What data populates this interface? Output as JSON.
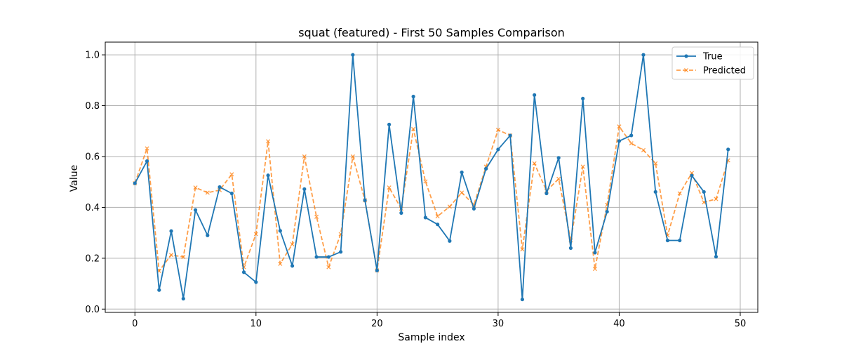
{
  "chart_data": {
    "type": "line",
    "title": "squat (featured) - First 50 Samples Comparison",
    "xlabel": "Sample index",
    "ylabel": "Value",
    "xlim": [
      -2.45,
      51.45
    ],
    "ylim": [
      -0.013,
      1.05
    ],
    "xticks": [
      0,
      10,
      20,
      30,
      40,
      50
    ],
    "yticks": [
      0.0,
      0.2,
      0.4,
      0.6,
      0.8,
      1.0
    ],
    "xtick_labels": [
      "0",
      "10",
      "20",
      "30",
      "40",
      "50"
    ],
    "ytick_labels": [
      "0.0",
      "0.2",
      "0.4",
      "0.6",
      "0.8",
      "1.0"
    ],
    "grid": true,
    "legend_position": "top-right",
    "x": [
      0,
      1,
      2,
      3,
      4,
      5,
      6,
      7,
      8,
      9,
      10,
      11,
      12,
      13,
      14,
      15,
      16,
      17,
      18,
      19,
      20,
      21,
      22,
      23,
      24,
      25,
      26,
      27,
      28,
      29,
      30,
      31,
      32,
      33,
      34,
      35,
      36,
      37,
      38,
      39,
      40,
      41,
      42,
      43,
      44,
      45,
      46,
      47,
      48,
      49
    ],
    "series": [
      {
        "name": "True",
        "color": "#1f77b4",
        "line_style": "solid",
        "marker": "dot",
        "values": [
          0.495,
          0.582,
          0.075,
          0.307,
          0.041,
          0.39,
          0.29,
          0.48,
          0.455,
          0.145,
          0.106,
          0.526,
          0.308,
          0.17,
          0.472,
          0.205,
          0.205,
          0.225,
          1.0,
          0.428,
          0.152,
          0.726,
          0.378,
          0.836,
          0.36,
          0.333,
          0.268,
          0.538,
          0.395,
          0.552,
          0.628,
          0.683,
          0.038,
          0.842,
          0.455,
          0.595,
          0.24,
          0.828,
          0.222,
          0.383,
          0.661,
          0.683,
          1.0,
          0.461,
          0.27,
          0.27,
          0.525,
          0.461,
          0.206,
          0.628
        ]
      },
      {
        "name": "Predicted",
        "color": "#ff7f0e",
        "line_style": "dashed",
        "marker": "x",
        "values": [
          0.495,
          0.632,
          0.15,
          0.213,
          0.205,
          0.478,
          0.458,
          0.468,
          0.53,
          0.165,
          0.295,
          0.66,
          0.178,
          0.255,
          0.6,
          0.363,
          0.165,
          0.295,
          0.6,
          0.428,
          0.152,
          0.478,
          0.395,
          0.708,
          0.502,
          0.365,
          0.403,
          0.458,
          0.41,
          0.56,
          0.705,
          0.683,
          0.235,
          0.573,
          0.465,
          0.512,
          0.27,
          0.56,
          0.158,
          0.41,
          0.718,
          0.652,
          0.625,
          0.573,
          0.29,
          0.455,
          0.535,
          0.42,
          0.433,
          0.585
        ]
      }
    ]
  }
}
